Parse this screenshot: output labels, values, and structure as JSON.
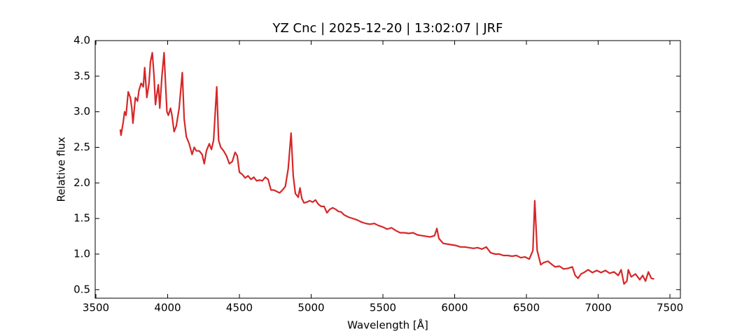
{
  "chart_data": {
    "type": "line",
    "title": "YZ Cnc | 2025-12-20 | 13:02:07 | JRF",
    "x_label": "Wavelength [Å]",
    "y_label": "Relative flux",
    "color": "#d62728",
    "x": [
      3670,
      3675,
      3690,
      3700,
      3710,
      3725,
      3740,
      3750,
      3758,
      3775,
      3790,
      3800,
      3815,
      3830,
      3840,
      3855,
      3870,
      3880,
      3893,
      3905,
      3915,
      3925,
      3935,
      3945,
      3960,
      3975,
      3985,
      3995,
      4005,
      4020,
      4030,
      4045,
      4060,
      4080,
      4102,
      4115,
      4130,
      4150,
      4170,
      4185,
      4200,
      4220,
      4240,
      4255,
      4270,
      4290,
      4305,
      4320,
      4342,
      4355,
      4370,
      4390,
      4410,
      4430,
      4450,
      4470,
      4485,
      4500,
      4520,
      4540,
      4560,
      4580,
      4600,
      4620,
      4640,
      4660,
      4680,
      4700,
      4720,
      4740,
      4760,
      4780,
      4800,
      4820,
      4840,
      4860,
      4875,
      4890,
      4910,
      4922,
      4935,
      4950,
      4970,
      4990,
      5010,
      5030,
      5050,
      5070,
      5090,
      5110,
      5130,
      5150,
      5170,
      5190,
      5210,
      5230,
      5260,
      5290,
      5320,
      5350,
      5380,
      5410,
      5440,
      5470,
      5500,
      5530,
      5560,
      5590,
      5620,
      5650,
      5680,
      5710,
      5740,
      5770,
      5800,
      5830,
      5860,
      5876,
      5890,
      5920,
      5950,
      5980,
      6010,
      6040,
      6070,
      6100,
      6130,
      6160,
      6190,
      6220,
      6250,
      6280,
      6310,
      6340,
      6370,
      6400,
      6430,
      6460,
      6490,
      6520,
      6545,
      6558,
      6575,
      6600,
      6620,
      6650,
      6680,
      6700,
      6730,
      6760,
      6790,
      6820,
      6840,
      6860,
      6880,
      6900,
      6930,
      6960,
      6990,
      7020,
      7050,
      7080,
      7110,
      7140,
      7160,
      7180,
      7200,
      7210,
      7230,
      7260,
      7290,
      7310,
      7330,
      7350,
      7370,
      7390
    ],
    "values": [
      2.75,
      2.67,
      2.85,
      3.0,
      2.95,
      3.28,
      3.2,
      3.05,
      2.84,
      3.2,
      3.15,
      3.3,
      3.4,
      3.35,
      3.62,
      3.2,
      3.4,
      3.7,
      3.83,
      3.5,
      3.1,
      3.25,
      3.38,
      3.05,
      3.5,
      3.83,
      3.4,
      3.0,
      2.95,
      3.05,
      2.95,
      2.72,
      2.8,
      3.05,
      3.55,
      2.9,
      2.65,
      2.55,
      2.4,
      2.5,
      2.45,
      2.45,
      2.4,
      2.27,
      2.45,
      2.55,
      2.47,
      2.6,
      3.35,
      2.6,
      2.5,
      2.45,
      2.38,
      2.27,
      2.3,
      2.43,
      2.38,
      2.15,
      2.12,
      2.07,
      2.1,
      2.05,
      2.08,
      2.03,
      2.04,
      2.03,
      2.08,
      2.05,
      1.9,
      1.9,
      1.88,
      1.86,
      1.9,
      1.95,
      2.2,
      2.7,
      2.1,
      1.85,
      1.8,
      1.93,
      1.78,
      1.72,
      1.73,
      1.75,
      1.73,
      1.76,
      1.7,
      1.67,
      1.67,
      1.58,
      1.63,
      1.65,
      1.63,
      1.6,
      1.59,
      1.55,
      1.52,
      1.5,
      1.48,
      1.45,
      1.43,
      1.42,
      1.43,
      1.4,
      1.38,
      1.35,
      1.37,
      1.33,
      1.3,
      1.3,
      1.29,
      1.3,
      1.27,
      1.26,
      1.25,
      1.24,
      1.26,
      1.36,
      1.22,
      1.15,
      1.14,
      1.13,
      1.12,
      1.1,
      1.1,
      1.09,
      1.08,
      1.09,
      1.07,
      1.1,
      1.02,
      1.0,
      1.0,
      0.98,
      0.98,
      0.97,
      0.98,
      0.95,
      0.96,
      0.93,
      1.05,
      1.75,
      1.05,
      0.85,
      0.88,
      0.9,
      0.85,
      0.82,
      0.83,
      0.79,
      0.8,
      0.82,
      0.7,
      0.66,
      0.72,
      0.74,
      0.78,
      0.74,
      0.77,
      0.74,
      0.77,
      0.73,
      0.75,
      0.7,
      0.78,
      0.58,
      0.62,
      0.78,
      0.68,
      0.72,
      0.64,
      0.7,
      0.62,
      0.75,
      0.66,
      0.65
    ],
    "xlim": [
      3495,
      7573
    ],
    "ylim": [
      0.38,
      4.0
    ],
    "xticks": [
      3500,
      4000,
      4500,
      5000,
      5500,
      6000,
      6500,
      7000,
      7500
    ],
    "yticks": [
      0.5,
      {
        "value": 1,
        "label": "1.0"
      },
      1.5,
      {
        "value": 2,
        "label": "2.0"
      },
      2.5,
      {
        "value": 3,
        "label": "3.0"
      },
      3.5,
      {
        "value": 4,
        "label": "4.0"
      }
    ]
  }
}
